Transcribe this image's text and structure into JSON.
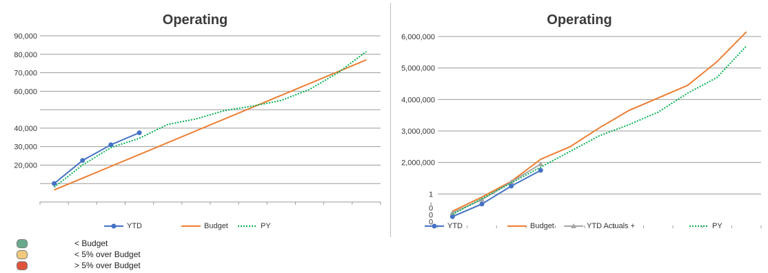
{
  "chart_data": [
    {
      "type": "line",
      "title": "Operating",
      "y_ticks": [
        "90,000",
        "80,000",
        "70,000",
        "60,000",
        "",
        "40,000",
        "30,000",
        "20,000",
        "",
        ""
      ],
      "y_tick_values": [
        90000,
        80000,
        70000,
        60000,
        50000,
        40000,
        30000,
        20000,
        10000,
        0
      ],
      "ylim": [
        0,
        90000
      ],
      "x_count": 12,
      "grid": true,
      "legend_position": "bottom",
      "series": [
        {
          "name": "YTD",
          "color": "#4472c4",
          "style": "solid-markers",
          "x": [
            0.5,
            1.5,
            2.5,
            3.5
          ],
          "values": [
            10000,
            22500,
            31000,
            37500
          ]
        },
        {
          "name": "Budget",
          "color": "#ed7d31",
          "style": "solid",
          "x": [
            0.5,
            11.5
          ],
          "values": [
            6500,
            77000
          ]
        },
        {
          "name": "PY",
          "color": "#00b050",
          "style": "dotted",
          "x": [
            0.5,
            1.5,
            2.5,
            3.5,
            4.5,
            5.5,
            6.5,
            7.5,
            8.5,
            9.5,
            10.5,
            11.5
          ],
          "values": [
            8000,
            20000,
            29500,
            34500,
            42000,
            45000,
            49500,
            52000,
            55000,
            61000,
            70000,
            81500
          ]
        }
      ]
    },
    {
      "type": "line",
      "title": "Operating",
      "y_ticks": [
        "6,000,000",
        "5,000,000",
        "4,000,000",
        "3,000,000",
        "2,000,000",
        "1\n,\n0\n0\n0"
      ],
      "y_tick_values": [
        6000000,
        5000000,
        4000000,
        3000000,
        2000000,
        1000000
      ],
      "ylim": [
        0,
        6000000
      ],
      "x_count": 11,
      "grid": true,
      "legend_position": "bottom",
      "series": [
        {
          "name": "YTD",
          "color": "#4472c4",
          "style": "solid-markers",
          "x": [
            0.5,
            1.5,
            2.5,
            3.5
          ],
          "values": [
            280000,
            680000,
            1250000,
            1750000
          ]
        },
        {
          "name": "Budget",
          "color": "#ed7d31",
          "style": "solid",
          "x": [
            0.5,
            1.5,
            2.5,
            3.5,
            4.5,
            5.5,
            6.5,
            7.5,
            8.5,
            9.5,
            10.5
          ],
          "values": [
            450000,
            900000,
            1400000,
            2100000,
            2500000,
            3100000,
            3650000,
            4050000,
            4450000,
            5200000,
            6150000
          ]
        },
        {
          "name": "YTD Actuals +",
          "color": "#a5a5a5",
          "style": "solid-triangles",
          "x": [
            0.5,
            1.5,
            2.5,
            3.5
          ],
          "values": [
            400000,
            820000,
            1380000,
            1950000
          ]
        },
        {
          "name": "PY",
          "color": "#00b050",
          "style": "dotted",
          "x": [
            0.5,
            1.5,
            2.5,
            3.5,
            4.5,
            5.5,
            6.5,
            7.5,
            8.5,
            9.5,
            10.5
          ],
          "values": [
            350000,
            850000,
            1350000,
            1850000,
            2350000,
            2850000,
            3200000,
            3600000,
            4200000,
            4700000,
            5700000
          ]
        }
      ]
    }
  ],
  "status_legend": [
    {
      "label": "< Budget",
      "color": "#6aaa8c"
    },
    {
      "label": "< 5% over Budget",
      "color": "#f0c97e"
    },
    {
      "label": "> 5% over Budget",
      "color": "#e0533a"
    }
  ]
}
